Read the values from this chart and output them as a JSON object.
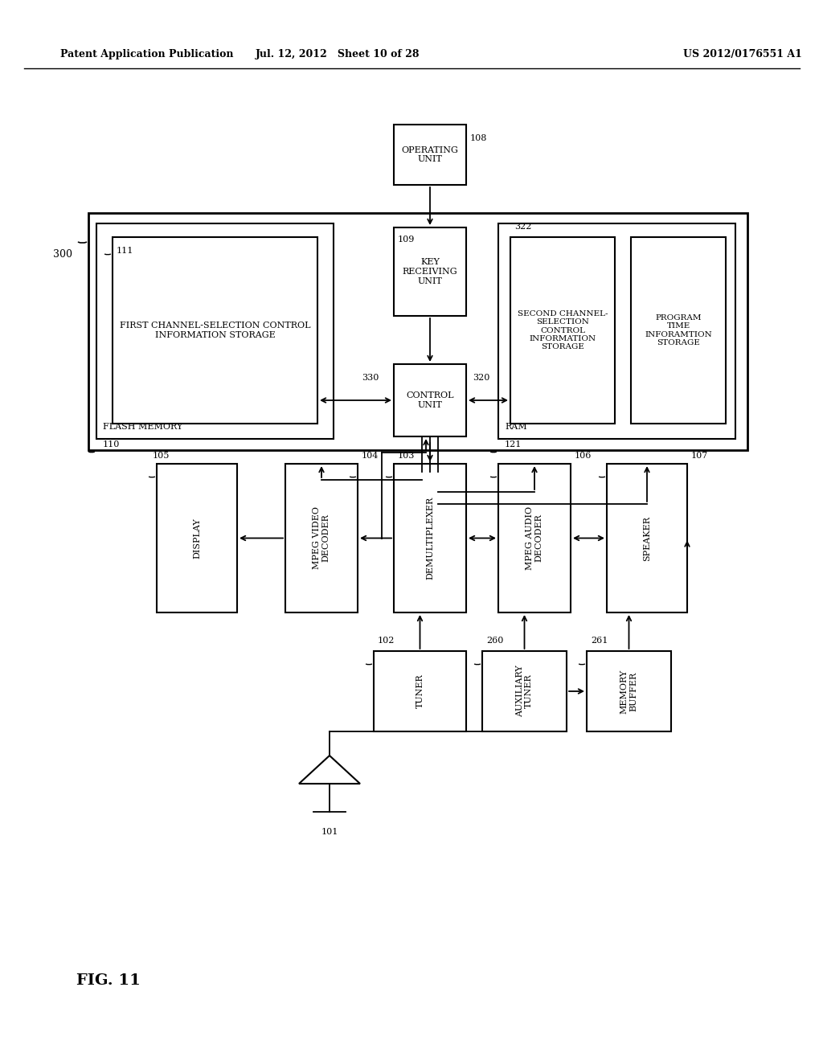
{
  "header_left": "Patent Application Publication",
  "header_mid": "Jul. 12, 2012   Sheet 10 of 28",
  "header_right": "US 2012/0176551 A1",
  "fig_label": "FIG. 11",
  "background": "#ffffff"
}
